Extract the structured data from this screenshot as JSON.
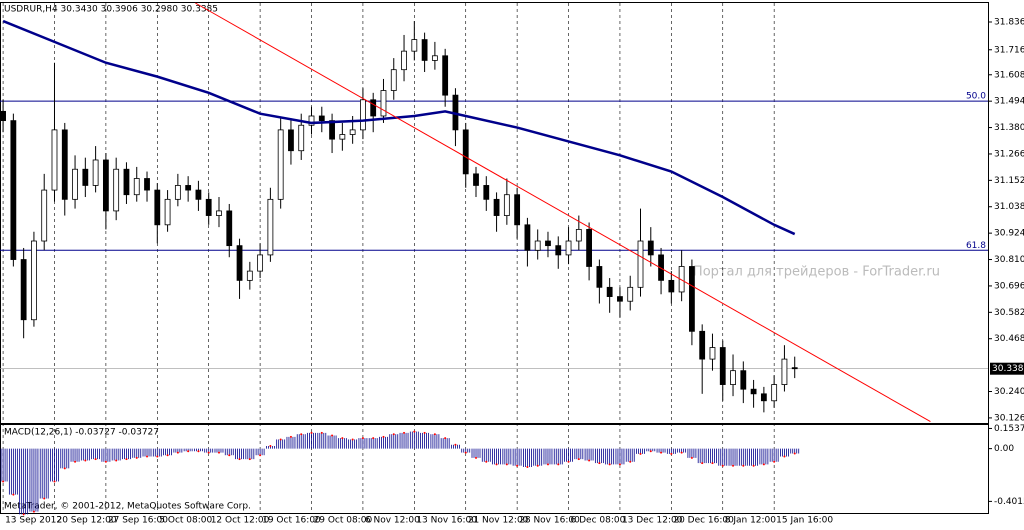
{
  "chart_data": {
    "type": "candlestick",
    "title": "USDRUR,H4  30.3430 30.3906 30.2980 30.3385",
    "watermark": "Портал для трейдеров - ForTrader.ru",
    "copyright": "MetaTrader, © 2001-2012, MetaQuotes Software Corp.",
    "xlim": [
      -0.3,
      95.8
    ],
    "xticks": [
      {
        "value": 0,
        "label": "13 Sep 2012"
      },
      {
        "value": 5,
        "label": "20 Sep 12:00"
      },
      {
        "value": 10,
        "label": "27 Sep 16:00"
      },
      {
        "value": 15,
        "label": "5 Oct 08:00"
      },
      {
        "value": 20,
        "label": "12 Oct 12:00"
      },
      {
        "value": 25,
        "label": "19 Oct 16:00"
      },
      {
        "value": 30,
        "label": "29 Oct 08:00"
      },
      {
        "value": 35,
        "label": "6 Nov 12:00"
      },
      {
        "value": 40,
        "label": "13 Nov 16:00"
      },
      {
        "value": 45,
        "label": "21 Nov 12:00"
      },
      {
        "value": 50,
        "label": "28 Nov 16:00"
      },
      {
        "value": 55,
        "label": "6 Dec 08:00"
      },
      {
        "value": 60,
        "label": "13 Dec 12:00"
      },
      {
        "value": 65,
        "label": "20 Dec 16:00"
      },
      {
        "value": 70,
        "label": "8 Jan 12:00"
      },
      {
        "value": 75,
        "label": "15 Jan 16:00"
      }
    ],
    "ylim": [
      30.104,
      31.918
    ],
    "yticks": [
      {
        "value": 31.836,
        "label": "31.8360"
      },
      {
        "value": 31.716,
        "label": "31.7160"
      },
      {
        "value": 31.608,
        "label": "31.6080"
      },
      {
        "value": 31.494,
        "label": "31.4940"
      },
      {
        "value": 31.38,
        "label": "31.3800"
      },
      {
        "value": 31.266,
        "label": "31.2660"
      },
      {
        "value": 31.152,
        "label": "31.1520"
      },
      {
        "value": 31.038,
        "label": "31.0380"
      },
      {
        "value": 30.924,
        "label": "30.9240"
      },
      {
        "value": 30.81,
        "label": "30.8100"
      },
      {
        "value": 30.696,
        "label": "30.6960"
      },
      {
        "value": 30.582,
        "label": "30.5820"
      },
      {
        "value": 30.468,
        "label": "30.4680"
      },
      {
        "value": 30.24,
        "label": "30.2400"
      },
      {
        "value": 30.126,
        "label": "30.1260"
      }
    ],
    "open": [
      31.45,
      31.41,
      30.81,
      30.55,
      30.89,
      31.11,
      31.37,
      31.07,
      31.2,
      31.13,
      31.24,
      31.02,
      31.2,
      31.09,
      31.16,
      31.11,
      30.96,
      31.07,
      31.13,
      31.11,
      31.07,
      31.0,
      31.02,
      30.87,
      30.72,
      30.76,
      30.83,
      31.07,
      31.37,
      31.28,
      31.39,
      31.43,
      31.41,
      31.33,
      31.35,
      31.37,
      31.5,
      31.43,
      31.54,
      31.63,
      31.71,
      31.76,
      31.67,
      31.69,
      31.52,
      31.37,
      31.18,
      31.13,
      31.07,
      31.0,
      31.09,
      30.96,
      30.85,
      30.89,
      30.87,
      30.83,
      30.89,
      30.94,
      30.78,
      30.69,
      30.65,
      30.63,
      30.69,
      30.89,
      30.83,
      30.72,
      30.67,
      30.78,
      30.5,
      30.38,
      30.43,
      30.27,
      30.33,
      30.25,
      30.23,
      30.2,
      30.27,
      30.343
    ],
    "high": [
      31.5,
      31.44,
      30.86,
      30.93,
      31.18,
      31.66,
      31.4,
      31.26,
      31.25,
      31.3,
      31.27,
      31.25,
      31.23,
      31.21,
      31.19,
      31.14,
      31.11,
      31.18,
      31.17,
      31.15,
      31.1,
      31.08,
      31.05,
      30.9,
      30.8,
      30.88,
      31.12,
      31.42,
      31.42,
      31.44,
      31.47,
      31.47,
      31.44,
      31.4,
      31.43,
      31.55,
      31.53,
      31.59,
      31.68,
      31.78,
      31.84,
      31.79,
      31.75,
      31.72,
      31.55,
      31.4,
      31.21,
      31.17,
      31.1,
      31.16,
      31.12,
      30.99,
      30.94,
      30.93,
      30.91,
      30.95,
      31.0,
      30.97,
      30.81,
      30.73,
      30.69,
      30.74,
      31.03,
      30.95,
      30.86,
      30.76,
      30.85,
      30.81,
      30.53,
      30.49,
      30.46,
      30.4,
      30.37,
      30.29,
      30.26,
      30.31,
      30.44,
      30.3906
    ],
    "low": [
      31.36,
      30.78,
      30.47,
      30.52,
      30.85,
      31.06,
      31.0,
      31.03,
      31.08,
      31.1,
      30.94,
      30.98,
      31.05,
      31.06,
      31.06,
      30.88,
      30.93,
      31.04,
      31.06,
      31.02,
      30.96,
      30.95,
      30.82,
      30.64,
      30.68,
      30.73,
      30.8,
      31.03,
      31.22,
      31.24,
      31.35,
      31.36,
      31.27,
      31.28,
      31.31,
      31.33,
      31.36,
      31.4,
      31.5,
      31.58,
      31.67,
      31.62,
      31.63,
      31.47,
      31.3,
      31.12,
      31.08,
      31.02,
      30.93,
      30.96,
      30.9,
      30.78,
      30.81,
      30.82,
      30.77,
      30.79,
      30.85,
      30.72,
      30.62,
      30.58,
      30.56,
      30.59,
      30.65,
      30.78,
      30.66,
      30.62,
      30.63,
      30.44,
      30.23,
      30.33,
      30.2,
      30.22,
      30.19,
      30.17,
      30.15,
      30.17,
      30.24,
      30.298
    ],
    "close": [
      31.41,
      30.81,
      30.55,
      30.89,
      31.11,
      31.37,
      31.07,
      31.2,
      31.13,
      31.24,
      31.02,
      31.2,
      31.09,
      31.16,
      31.11,
      30.96,
      31.07,
      31.13,
      31.11,
      31.07,
      31.0,
      31.02,
      30.87,
      30.72,
      30.76,
      30.83,
      31.07,
      31.37,
      31.28,
      31.39,
      31.43,
      31.41,
      31.33,
      31.35,
      31.37,
      31.5,
      31.43,
      31.54,
      31.63,
      31.71,
      31.76,
      31.67,
      31.69,
      31.52,
      31.37,
      31.18,
      31.13,
      31.07,
      31.0,
      31.09,
      30.96,
      30.85,
      30.89,
      30.87,
      30.83,
      30.89,
      30.94,
      30.78,
      30.69,
      30.65,
      30.63,
      30.69,
      30.89,
      30.83,
      30.72,
      30.67,
      30.78,
      30.5,
      30.38,
      30.43,
      30.27,
      30.33,
      30.25,
      30.23,
      30.2,
      30.27,
      30.38,
      30.3385
    ],
    "moving_average": {
      "color": "#00008b",
      "x": [
        0,
        5,
        10,
        15,
        20,
        25,
        30,
        35,
        40,
        43,
        45,
        50,
        55,
        60,
        65,
        70,
        75,
        77
      ],
      "values": [
        31.84,
        31.75,
        31.66,
        31.6,
        31.53,
        31.44,
        31.4,
        31.41,
        31.43,
        31.45,
        31.43,
        31.38,
        31.32,
        31.26,
        31.19,
        31.08,
        30.96,
        30.92
      ]
    },
    "trendline": {
      "color": "#ff0000",
      "x": [
        18.7,
        90.2
      ],
      "values": [
        31.918,
        30.11
      ]
    },
    "levels": [
      {
        "label": "50.0",
        "value": 31.494
      },
      {
        "label": "61.8",
        "value": 30.85
      }
    ],
    "level_color": "#00008b",
    "price_label": {
      "value": 30.3385,
      "label": "30.3385"
    },
    "macd": {
      "title": "MACD(12,26,1) -0.03727 -0.03727",
      "color": "#00008b",
      "dot_color": "#ff0000",
      "ylim": [
        -0.49,
        0.18
      ],
      "yticks": [
        0.15374,
        {
          "value": 0,
          "label": "0.00"
        },
        -0.40154
      ],
      "values": [
        -0.25,
        -0.35,
        -0.5,
        -0.48,
        -0.38,
        -0.25,
        -0.15,
        -0.1,
        -0.09,
        -0.08,
        -0.1,
        -0.09,
        -0.08,
        -0.07,
        -0.06,
        -0.06,
        -0.05,
        -0.03,
        -0.02,
        -0.02,
        -0.03,
        -0.03,
        -0.05,
        -0.08,
        -0.08,
        -0.05,
        0.02,
        0.07,
        0.09,
        0.11,
        0.12,
        0.12,
        0.1,
        0.08,
        0.07,
        0.08,
        0.08,
        0.09,
        0.11,
        0.12,
        0.13,
        0.12,
        0.11,
        0.08,
        0.03,
        -0.03,
        -0.07,
        -0.1,
        -0.12,
        -0.12,
        -0.13,
        -0.14,
        -0.13,
        -0.12,
        -0.12,
        -0.1,
        -0.08,
        -0.09,
        -0.11,
        -0.12,
        -0.12,
        -0.1,
        -0.04,
        -0.02,
        -0.03,
        -0.04,
        -0.03,
        -0.07,
        -0.11,
        -0.11,
        -0.13,
        -0.13,
        -0.13,
        -0.13,
        -0.12,
        -0.1,
        -0.06,
        -0.03727
      ]
    }
  }
}
